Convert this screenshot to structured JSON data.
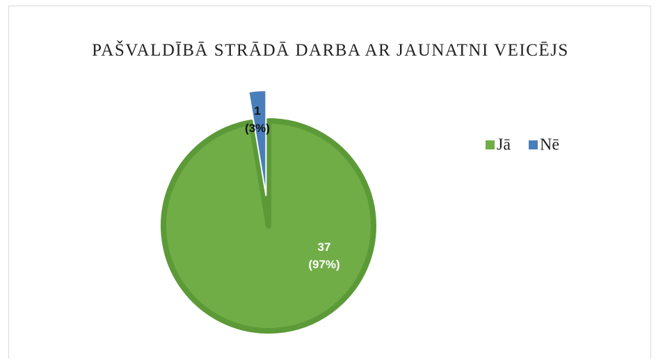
{
  "chart_data": {
    "type": "pie",
    "title": "PAŠVALDĪBĀ STRĀDĀ DARBA AR JAUNATNI VEICĒJS",
    "categories": [
      "Jā",
      "Nē"
    ],
    "values": [
      37,
      1
    ],
    "value_labels": [
      "37 (97%)",
      "1 (3%)"
    ],
    "colors": [
      "#70ad47",
      "#4a7ebb"
    ],
    "legend": "right"
  }
}
